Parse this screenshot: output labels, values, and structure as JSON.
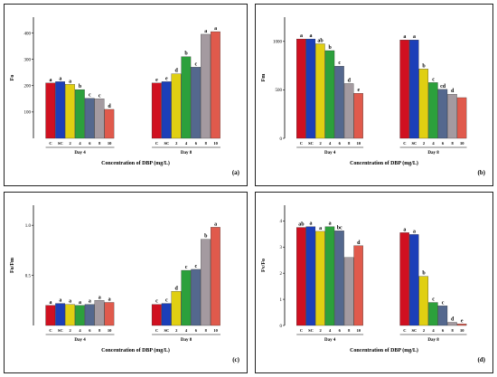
{
  "colors": [
    "#d01020",
    "#1c3fb8",
    "#e0cf12",
    "#2ca03c",
    "#54688e",
    "#a49aa0",
    "#e05a4c"
  ],
  "chart_data": [
    {
      "type": "bar",
      "panel": "(a)",
      "ylabel": "Fo",
      "xlabel": "Concentration of DBP (mg/L)",
      "groups": [
        "Day 4",
        "Day 8"
      ],
      "categories": [
        "C",
        "SC",
        "2",
        "4",
        "6",
        "8",
        "10"
      ],
      "yticks": [
        "100",
        "200",
        "300",
        "400"
      ],
      "ylim": [
        0,
        460
      ],
      "series": [
        {
          "values": [
            210,
            215,
            205,
            185,
            152,
            150,
            110
          ],
          "letters": [
            "a",
            "a",
            "a",
            "b",
            "c",
            "c",
            "d"
          ]
        },
        {
          "values": [
            210,
            215,
            245,
            310,
            270,
            395,
            405
          ],
          "letters": [
            "e",
            "e",
            "d",
            "b",
            "c",
            "a",
            "a"
          ]
        }
      ]
    },
    {
      "type": "bar",
      "panel": "(b)",
      "ylabel": "Fm",
      "xlabel": "Concentration of DBP (mg/L)",
      "groups": [
        "Day 4",
        "Day 8"
      ],
      "categories": [
        "C",
        "SC",
        "2",
        "4",
        "6",
        "8",
        "10"
      ],
      "yticks": [
        "0",
        "500",
        "1000"
      ],
      "ylim": [
        0,
        1250
      ],
      "series": [
        {
          "values": [
            1025,
            1025,
            975,
            905,
            745,
            565,
            465
          ],
          "letters": [
            "a",
            "a",
            "ab",
            "b",
            "c",
            "d",
            "e"
          ]
        },
        {
          "values": [
            1015,
            1015,
            715,
            575,
            505,
            455,
            420
          ],
          "letters": [
            "a",
            "a",
            "b",
            "c",
            "cd",
            "d",
            ""
          ]
        }
      ]
    },
    {
      "type": "bar",
      "panel": "(c)",
      "ylabel": "Fo/Fm",
      "xlabel": "Concentration of DBP (mg/L)",
      "groups": [
        "Day 4",
        "Day 8"
      ],
      "categories": [
        "C",
        "SC",
        "2",
        "4",
        "6",
        "8",
        "10"
      ],
      "yticks": [
        "0.5",
        "1.0"
      ],
      "ylim": [
        0,
        1.2
      ],
      "series": [
        {
          "values": [
            0.2,
            0.22,
            0.21,
            0.2,
            0.21,
            0.25,
            0.23
          ],
          "letters": [
            "a",
            "a",
            "a",
            "a",
            "a",
            "a",
            "a"
          ]
        },
        {
          "values": [
            0.21,
            0.22,
            0.34,
            0.55,
            0.56,
            0.86,
            0.98
          ],
          "letters": [
            "c",
            "c",
            "d",
            "c",
            "c",
            "b",
            "a"
          ]
        }
      ]
    },
    {
      "type": "bar",
      "panel": "(d)",
      "ylabel": "Fv/Fo",
      "xlabel": "Concentration of DBP (mg/L)",
      "groups": [
        "Day 4",
        "Day 8"
      ],
      "categories": [
        "C",
        "SC",
        "2",
        "4",
        "6",
        "8",
        "10"
      ],
      "yticks": [
        "0",
        "1",
        "2",
        "3",
        "4"
      ],
      "ylim": [
        0,
        4.6
      ],
      "series": [
        {
          "values": [
            3.75,
            3.78,
            3.6,
            3.78,
            3.62,
            2.6,
            3.05
          ],
          "letters": [
            "ab",
            "a",
            "a",
            "a",
            "bc",
            "",
            "d"
          ]
        },
        {
          "values": [
            3.55,
            3.48,
            1.88,
            0.88,
            0.75,
            0.12,
            0.06
          ],
          "letters": [
            "a",
            "a",
            "b",
            "c",
            "c",
            "d",
            "e"
          ]
        }
      ]
    }
  ]
}
